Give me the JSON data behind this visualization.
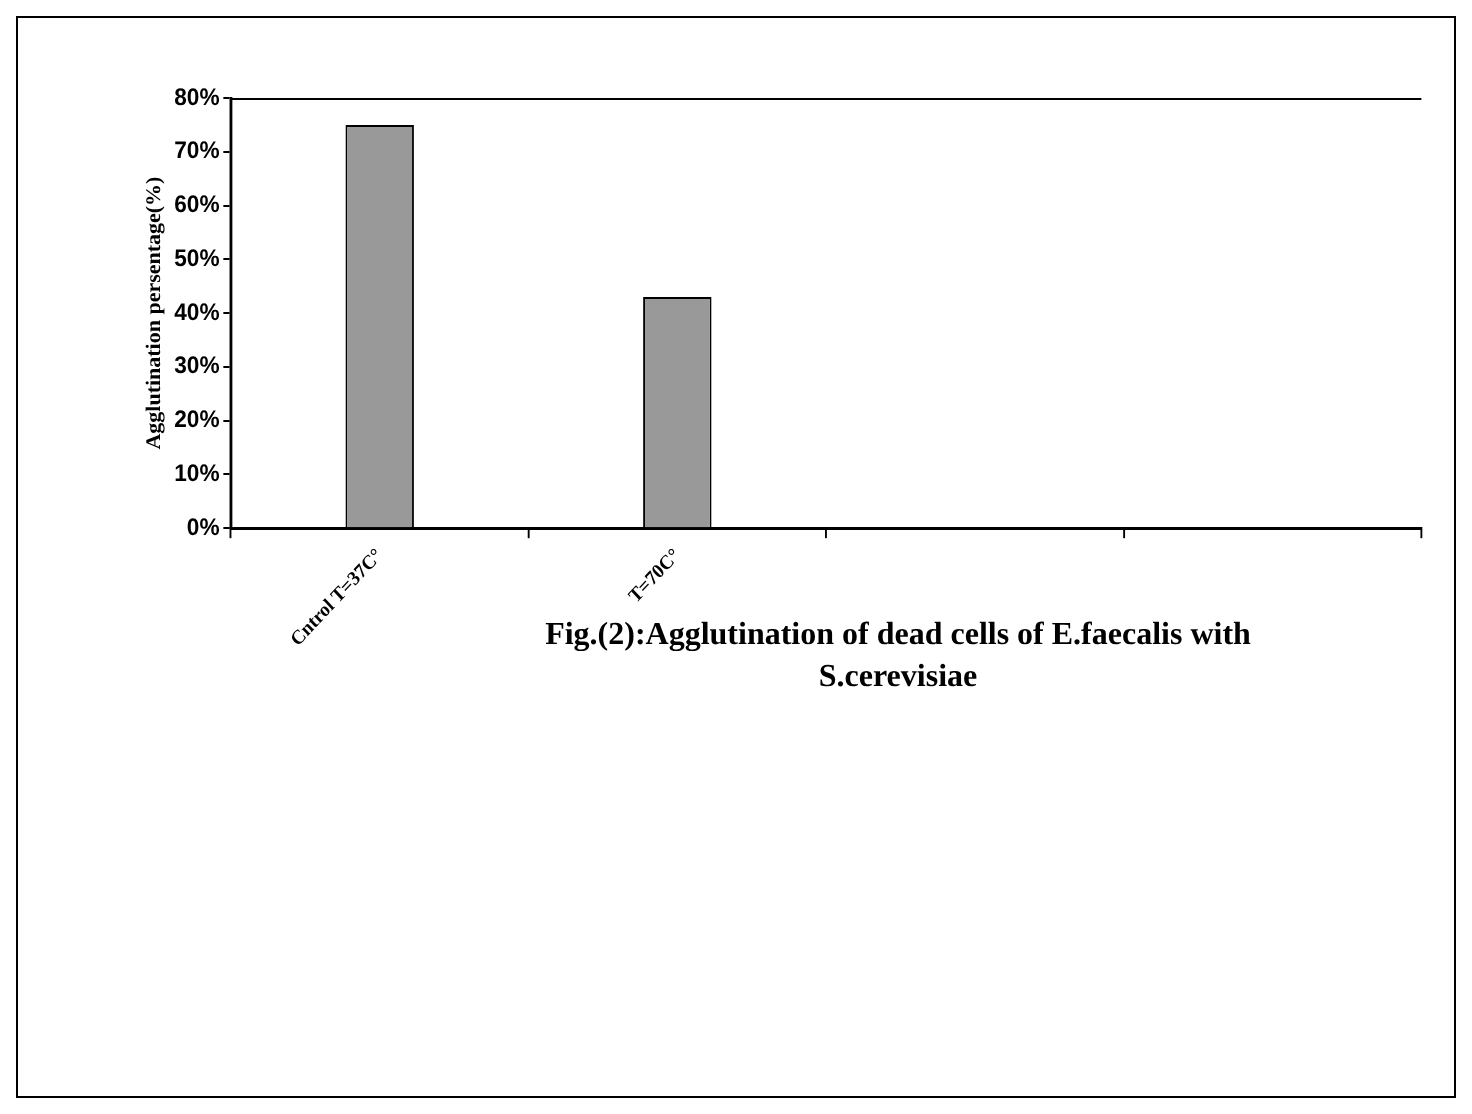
{
  "chart_data": {
    "type": "bar",
    "title": "Fig.(2):Agglutination of dead cells of E.faecalis with S.cerevisiae",
    "ylabel": "Agglutination persentage(%)",
    "categories": [
      "Cntrol T=37C°",
      "T=70C°",
      null,
      null
    ],
    "values": [
      75,
      43,
      null,
      null
    ],
    "color": "#999999",
    "ylim": [
      0,
      80
    ],
    "yticks": [
      {
        "value": 0,
        "label": "0%"
      },
      {
        "value": 10,
        "label": "10%"
      },
      {
        "value": 20,
        "label": "20%"
      },
      {
        "value": 30,
        "label": "30%"
      },
      {
        "value": 40,
        "label": "40%"
      },
      {
        "value": 50,
        "label": "50%"
      },
      {
        "value": 60,
        "label": "60%"
      },
      {
        "value": 70,
        "label": "70%"
      },
      {
        "value": 80,
        "label": "80%"
      }
    ],
    "grid": false
  }
}
